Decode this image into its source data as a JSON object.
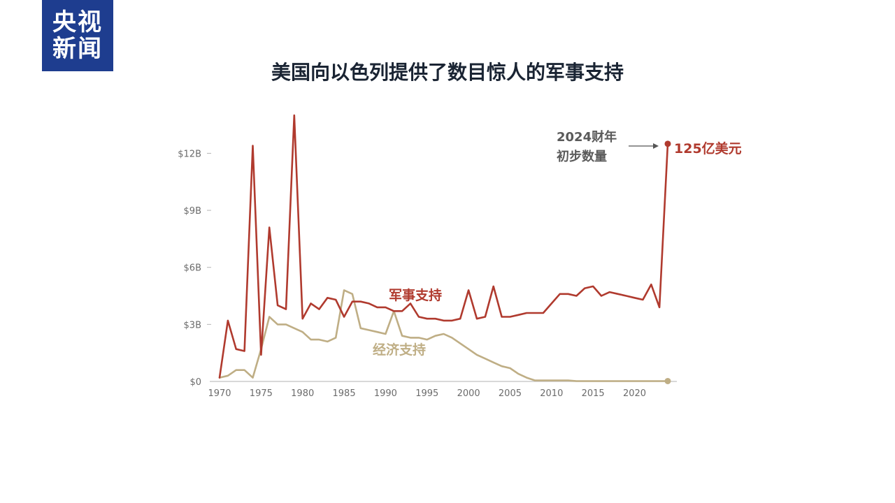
{
  "logo": {
    "line1": "央视",
    "line2": "新闻"
  },
  "colors": {
    "military": "#b03a2e",
    "economic": "#bfae85",
    "axis": "#cccccc",
    "logo_bg": "#1e3d8f"
  },
  "chart_data": {
    "type": "line",
    "title": "美国向以色列提供了数目惊人的军事支持",
    "xlabel": "",
    "ylabel": "",
    "xlim": [
      1970,
      2024
    ],
    "ylim": [
      0,
      14
    ],
    "y_ticks": [
      {
        "value": 0,
        "label": "$0"
      },
      {
        "value": 3,
        "label": "$3B"
      },
      {
        "value": 6,
        "label": "$6B"
      },
      {
        "value": 9,
        "label": "$9B"
      },
      {
        "value": 12,
        "label": "$12B"
      }
    ],
    "x_ticks": [
      {
        "value": 1970,
        "label": "1970"
      },
      {
        "value": 1975,
        "label": "1975"
      },
      {
        "value": 1980,
        "label": "1980"
      },
      {
        "value": 1985,
        "label": "1985"
      },
      {
        "value": 1990,
        "label": "1990"
      },
      {
        "value": 1995,
        "label": "1995"
      },
      {
        "value": 2000,
        "label": "2000"
      },
      {
        "value": 2005,
        "label": "2005"
      },
      {
        "value": 2010,
        "label": "2010"
      },
      {
        "value": 2015,
        "label": "2015"
      },
      {
        "value": 2020,
        "label": "2020"
      }
    ],
    "grid": false,
    "series": [
      {
        "name": "军事支持",
        "color": "#b03a2e",
        "x": [
          1970,
          1971,
          1972,
          1973,
          1974,
          1975,
          1976,
          1977,
          1978,
          1979,
          1980,
          1981,
          1982,
          1983,
          1984,
          1985,
          1986,
          1987,
          1988,
          1989,
          1990,
          1991,
          1992,
          1993,
          1994,
          1995,
          1996,
          1997,
          1998,
          1999,
          2000,
          2001,
          2002,
          2003,
          2004,
          2005,
          2006,
          2007,
          2008,
          2009,
          2010,
          2011,
          2012,
          2013,
          2014,
          2015,
          2016,
          2017,
          2018,
          2019,
          2020,
          2021,
          2022,
          2023,
          2024
        ],
        "values": [
          0.2,
          3.2,
          1.7,
          1.6,
          12.4,
          1.4,
          8.1,
          4.0,
          3.8,
          14.0,
          3.3,
          4.1,
          3.8,
          4.4,
          4.3,
          3.4,
          4.2,
          4.2,
          4.1,
          3.9,
          3.9,
          3.7,
          3.7,
          4.1,
          3.4,
          3.3,
          3.3,
          3.2,
          3.2,
          3.3,
          4.8,
          3.3,
          3.4,
          5.0,
          3.4,
          3.4,
          3.5,
          3.6,
          3.6,
          3.6,
          4.1,
          4.6,
          4.6,
          4.5,
          4.9,
          5.0,
          4.5,
          4.7,
          4.6,
          4.5,
          4.4,
          4.3,
          5.1,
          3.9,
          12.5
        ]
      },
      {
        "name": "经济支持",
        "color": "#bfae85",
        "x": [
          1970,
          1971,
          1972,
          1973,
          1974,
          1975,
          1976,
          1977,
          1978,
          1979,
          1980,
          1981,
          1982,
          1983,
          1984,
          1985,
          1986,
          1987,
          1988,
          1989,
          1990,
          1991,
          1992,
          1993,
          1994,
          1995,
          1996,
          1997,
          1998,
          1999,
          2000,
          2001,
          2002,
          2003,
          2004,
          2005,
          2006,
          2007,
          2008,
          2009,
          2010,
          2011,
          2012,
          2013,
          2014,
          2015,
          2016,
          2017,
          2018,
          2019,
          2020,
          2021,
          2022,
          2023,
          2024
        ],
        "values": [
          0.2,
          0.3,
          0.6,
          0.6,
          0.2,
          1.7,
          3.4,
          3.0,
          3.0,
          2.8,
          2.6,
          2.2,
          2.2,
          2.1,
          2.3,
          4.8,
          4.6,
          2.8,
          2.7,
          2.6,
          2.5,
          3.7,
          2.4,
          2.3,
          2.3,
          2.2,
          2.4,
          2.5,
          2.3,
          2.0,
          1.7,
          1.4,
          1.2,
          1.0,
          0.8,
          0.7,
          0.4,
          0.2,
          0.05,
          0.05,
          0.05,
          0.05,
          0.05,
          0.02,
          0.02,
          0.02,
          0.02,
          0.02,
          0.02,
          0.02,
          0.02,
          0.02,
          0.02,
          0.02,
          0.02
        ]
      }
    ],
    "series_labels": {
      "military": "军事支持",
      "economic": "经济支持"
    },
    "annotation": {
      "line1": "2024财年",
      "line2": "初步数量",
      "value_label": "125亿美元",
      "x": 2024,
      "y": 12.5
    }
  }
}
